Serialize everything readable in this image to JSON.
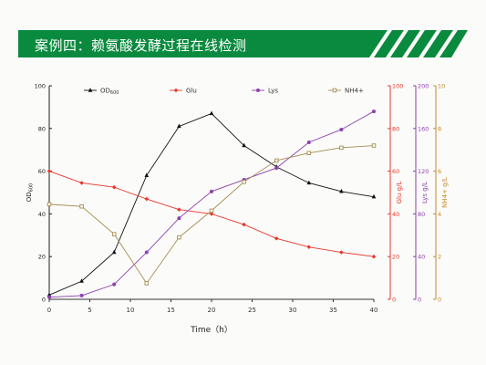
{
  "slide": {
    "title": "案例四：赖氨酸发酵过程在线检测",
    "banner_color": "#0a8a3e"
  },
  "chart_data": {
    "type": "line",
    "xlabel": "Time（h）",
    "x_ticks": [
      0,
      5,
      10,
      15,
      20,
      25,
      30,
      35,
      40
    ],
    "xlim": [
      0,
      40
    ],
    "x": [
      0,
      4,
      8,
      12,
      16,
      20,
      24,
      28,
      32,
      36,
      40
    ],
    "axes": [
      {
        "id": "od",
        "label": "OD600",
        "label_main": "OD",
        "label_sub": "600",
        "color": "#222222",
        "ylim": [
          0,
          100
        ],
        "ticks": [
          0,
          20,
          40,
          60,
          80,
          100
        ]
      },
      {
        "id": "glu",
        "label": "Glu g/L",
        "color": "#e8372c",
        "ylim": [
          0,
          100
        ],
        "ticks": [
          0,
          20,
          40,
          60,
          80,
          100
        ]
      },
      {
        "id": "lys",
        "label": "Lys g/L",
        "color": "#8e3fb0",
        "ylim": [
          0,
          200
        ],
        "ticks": [
          0,
          40,
          80,
          120,
          160,
          200
        ]
      },
      {
        "id": "nh4",
        "label": "NH4+ g/L",
        "color": "#c48a2c",
        "ylim": [
          0,
          10
        ],
        "ticks": [
          0,
          2,
          4,
          6,
          8,
          10
        ]
      }
    ],
    "series": [
      {
        "name": "OD600",
        "name_main": "OD",
        "name_sub": "600",
        "axis": "od",
        "color": "#111111",
        "marker": "triangle",
        "values": [
          2,
          8.5,
          22,
          58,
          81,
          87,
          72,
          62,
          54.5,
          50.5,
          48
        ]
      },
      {
        "name": "Glu",
        "axis": "glu",
        "color": "#e8372c",
        "marker": "diamond",
        "values": [
          60,
          54.5,
          52.5,
          47,
          42,
          40,
          35,
          28.5,
          24.5,
          22,
          20
        ]
      },
      {
        "name": "Lys",
        "axis": "lys",
        "color": "#8e3fb0",
        "marker": "circle",
        "values": [
          2,
          3.5,
          14,
          44,
          76,
          101,
          112,
          123,
          147,
          159,
          176
        ]
      },
      {
        "name": "NH4+",
        "axis": "nh4",
        "color": "#a38c50",
        "marker": "square",
        "values": [
          4.45,
          4.35,
          3.05,
          0.75,
          2.9,
          4.15,
          5.5,
          6.5,
          6.85,
          7.1,
          7.2
        ]
      }
    ],
    "legend_position": "top",
    "grid": false
  }
}
